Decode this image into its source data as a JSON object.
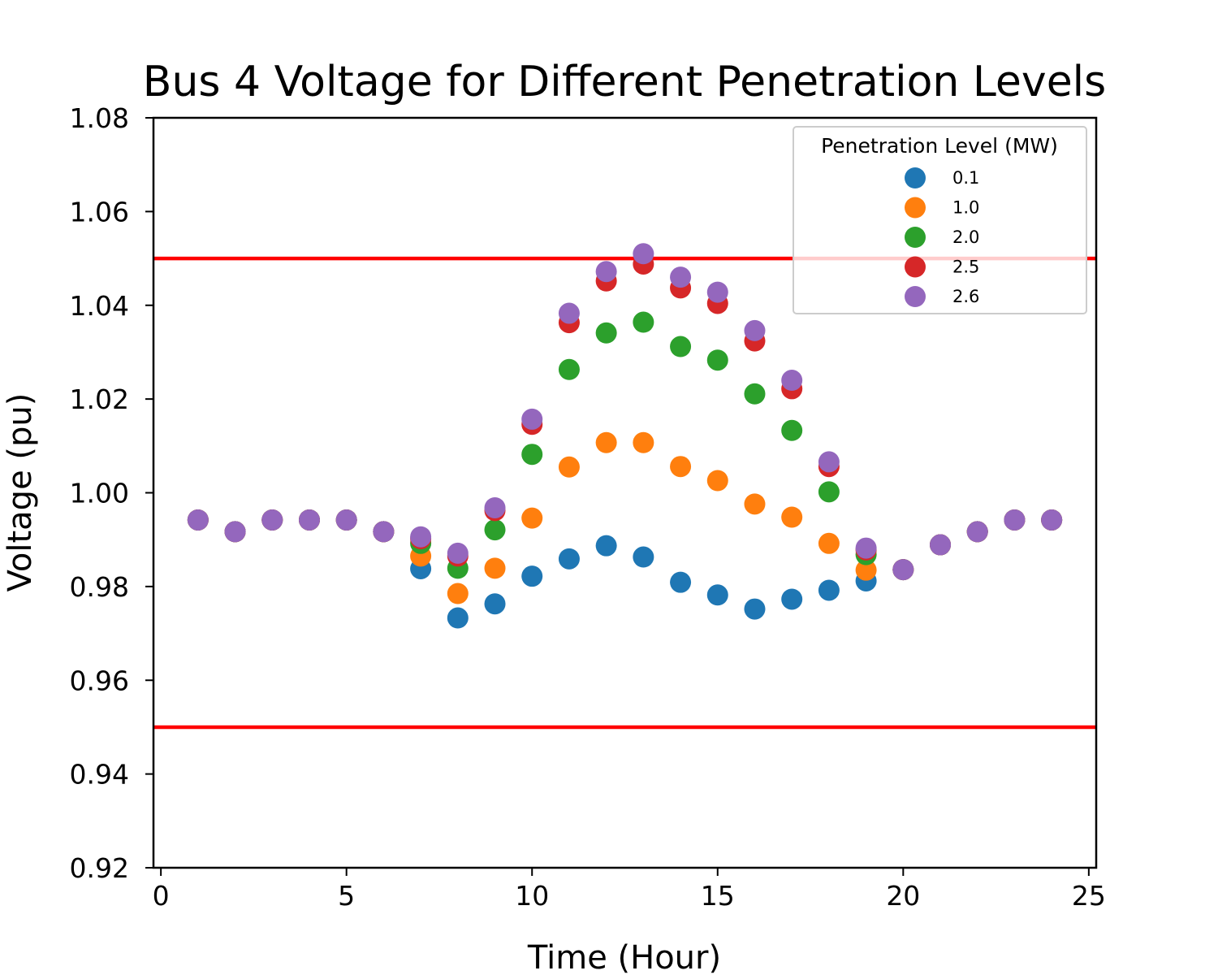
{
  "chart_data": {
    "type": "scatter",
    "title": "Bus 4 Voltage for Different Penetration Levels",
    "xlabel": "Time (Hour)",
    "ylabel": "Voltage (pu)",
    "xlim": [
      -0.2,
      25.2
    ],
    "ylim": [
      0.92,
      1.08
    ],
    "xticks": [
      0,
      5,
      10,
      15,
      20,
      25
    ],
    "yticks": [
      0.92,
      0.94,
      0.96,
      0.98,
      1.0,
      1.02,
      1.04,
      1.06,
      1.08
    ],
    "ytick_labels": [
      "0.92",
      "0.94",
      "0.96",
      "0.98",
      "1.00",
      "1.02",
      "1.04",
      "1.06",
      "1.08"
    ],
    "limit_lines": [
      {
        "y": 1.05,
        "color": "#ff0000"
      },
      {
        "y": 0.95,
        "color": "#ff0000"
      }
    ],
    "legend": {
      "title": "Penetration Level (MW)",
      "position": "top-right"
    },
    "x": [
      1,
      2,
      3,
      4,
      5,
      6,
      7,
      8,
      9,
      10,
      11,
      12,
      13,
      14,
      15,
      16,
      17,
      18,
      19,
      20,
      21,
      22,
      23,
      24
    ],
    "series": [
      {
        "name": "0.1",
        "color": "#1f77b4",
        "values": [
          0.9942,
          0.9917,
          0.9942,
          0.9942,
          0.9942,
          0.9917,
          0.9838,
          0.9733,
          0.9763,
          0.9822,
          0.9859,
          0.9887,
          0.9863,
          0.9809,
          0.9782,
          0.9752,
          0.9773,
          0.9792,
          0.9812,
          0.9836,
          0.9889,
          0.9917,
          0.9942,
          0.9942
        ]
      },
      {
        "name": "1.0",
        "color": "#ff7f0e",
        "values": [
          0.9942,
          0.9917,
          0.9942,
          0.9942,
          0.9942,
          0.9917,
          0.9865,
          0.9785,
          0.9839,
          0.9946,
          1.0055,
          1.0107,
          1.0107,
          1.0056,
          1.0026,
          0.9976,
          0.9948,
          0.9892,
          0.9835,
          0.9836,
          0.9889,
          0.9917,
          0.9942,
          0.9942
        ]
      },
      {
        "name": "2.0",
        "color": "#2ca02c",
        "values": [
          0.9942,
          0.9917,
          0.9942,
          0.9942,
          0.9942,
          0.9917,
          0.9892,
          0.9839,
          0.9921,
          1.0082,
          1.0263,
          1.0341,
          1.0364,
          1.0312,
          1.0283,
          1.0211,
          1.0133,
          1.0002,
          0.9868,
          0.9836,
          0.9889,
          0.9917,
          0.9942,
          0.9942
        ]
      },
      {
        "name": "2.5",
        "color": "#d62728",
        "values": [
          0.9942,
          0.9917,
          0.9942,
          0.9942,
          0.9942,
          0.9917,
          0.9902,
          0.9865,
          0.9962,
          1.0146,
          1.0363,
          1.0452,
          1.0488,
          1.0437,
          1.0404,
          1.0324,
          1.0222,
          1.0056,
          0.9878,
          0.9836,
          0.9889,
          0.9917,
          0.9942,
          0.9942
        ]
      },
      {
        "name": "2.6",
        "color": "#9467bd",
        "values": [
          0.9942,
          0.9917,
          0.9942,
          0.9942,
          0.9942,
          0.9917,
          0.9906,
          0.9871,
          0.9968,
          1.0157,
          1.0383,
          1.0472,
          1.051,
          1.046,
          1.0428,
          1.0346,
          1.024,
          1.0066,
          0.9882,
          0.9836,
          0.9889,
          0.9917,
          0.9942,
          0.9942
        ]
      }
    ]
  }
}
